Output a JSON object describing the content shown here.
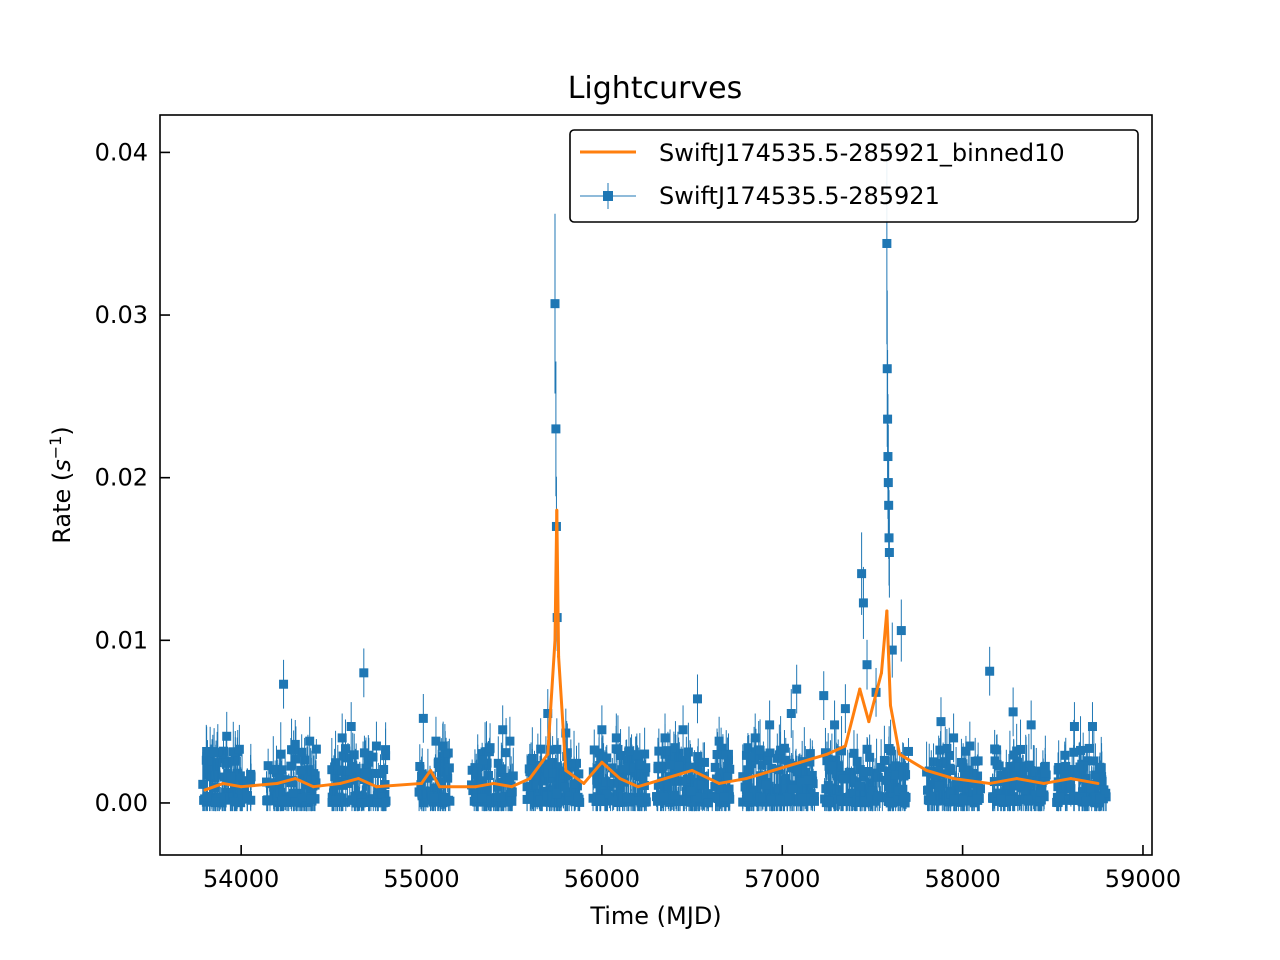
{
  "chart_data": {
    "type": "scatter",
    "title": "Lightcurves",
    "xlabel": "Time (MJD)",
    "ylabel_main": "Rate (",
    "ylabel_var": "s",
    "ylabel_exp": "−1",
    "ylabel_close": ")",
    "xlim": [
      53550,
      59050
    ],
    "ylim": [
      -0.0032,
      0.0423
    ],
    "xticks": [
      54000,
      55000,
      56000,
      57000,
      58000,
      59000
    ],
    "xtick_labels": [
      "54000",
      "55000",
      "56000",
      "57000",
      "58000",
      "59000"
    ],
    "yticks": [
      0.0,
      0.01,
      0.02,
      0.03,
      0.04
    ],
    "ytick_labels": [
      "0.00",
      "0.01",
      "0.02",
      "0.03",
      "0.04"
    ],
    "grid": false,
    "legend_position": "top-right",
    "series": [
      {
        "name": "SwiftJ174535.5-285921_binned10",
        "kind": "line",
        "color": "#ff7f0e",
        "x": [
          53800,
          53900,
          54000,
          54200,
          54300,
          54400,
          54550,
          54650,
          54750,
          55000,
          55050,
          55100,
          55300,
          55400,
          55500,
          55600,
          55700,
          55740,
          55750,
          55760,
          55800,
          55900,
          56000,
          56050,
          56100,
          56200,
          56350,
          56500,
          56650,
          56800,
          56950,
          57100,
          57250,
          57350,
          57430,
          57480,
          57550,
          57580,
          57600,
          57650,
          57800,
          57950,
          58150,
          58300,
          58450,
          58600,
          58750
        ],
        "y": [
          0.0008,
          0.0012,
          0.001,
          0.0012,
          0.0015,
          0.001,
          0.0012,
          0.0015,
          0.001,
          0.0012,
          0.002,
          0.001,
          0.001,
          0.0012,
          0.001,
          0.0015,
          0.003,
          0.01,
          0.018,
          0.009,
          0.002,
          0.0012,
          0.0025,
          0.002,
          0.0015,
          0.001,
          0.0015,
          0.002,
          0.0012,
          0.0015,
          0.002,
          0.0025,
          0.003,
          0.0035,
          0.007,
          0.005,
          0.008,
          0.0118,
          0.006,
          0.003,
          0.002,
          0.0015,
          0.0012,
          0.0015,
          0.0012,
          0.0015,
          0.0012
        ]
      },
      {
        "name": "SwiftJ174535.5-285921",
        "kind": "errorbar-square",
        "color": "#1f77b4",
        "segments": [
          [
            53780,
            54060
          ],
          [
            54140,
            54420
          ],
          [
            54500,
            54810
          ],
          [
            54980,
            55160
          ],
          [
            55270,
            55510
          ],
          [
            55580,
            55880
          ],
          [
            55950,
            56250
          ],
          [
            56300,
            56720
          ],
          [
            56780,
            57180
          ],
          [
            57230,
            57420
          ],
          [
            57430,
            57700
          ],
          [
            57800,
            58100
          ],
          [
            58160,
            58470
          ],
          [
            58520,
            58800
          ]
        ],
        "peaks": [
          {
            "x": 53850,
            "y": 0.0031
          },
          {
            "x": 53920,
            "y": 0.0041
          },
          {
            "x": 53990,
            "y": 0.0033
          },
          {
            "x": 54235,
            "y": 0.0073
          },
          {
            "x": 54300,
            "y": 0.0036
          },
          {
            "x": 54380,
            "y": 0.0038
          },
          {
            "x": 54560,
            "y": 0.004
          },
          {
            "x": 54610,
            "y": 0.0047
          },
          {
            "x": 54680,
            "y": 0.008
          },
          {
            "x": 54750,
            "y": 0.0035
          },
          {
            "x": 55010,
            "y": 0.0052
          },
          {
            "x": 55080,
            "y": 0.0038
          },
          {
            "x": 55120,
            "y": 0.0035
          },
          {
            "x": 55380,
            "y": 0.0034
          },
          {
            "x": 55450,
            "y": 0.0045
          },
          {
            "x": 55490,
            "y": 0.0038
          },
          {
            "x": 55700,
            "y": 0.0055
          },
          {
            "x": 55740,
            "y": 0.0307
          },
          {
            "x": 55745,
            "y": 0.023
          },
          {
            "x": 55748,
            "y": 0.017
          },
          {
            "x": 55752,
            "y": 0.0114
          },
          {
            "x": 55800,
            "y": 0.0043
          },
          {
            "x": 56000,
            "y": 0.0045
          },
          {
            "x": 56080,
            "y": 0.004
          },
          {
            "x": 56150,
            "y": 0.0032
          },
          {
            "x": 56350,
            "y": 0.004
          },
          {
            "x": 56450,
            "y": 0.0045
          },
          {
            "x": 56530,
            "y": 0.0064
          },
          {
            "x": 56650,
            "y": 0.0038
          },
          {
            "x": 56850,
            "y": 0.004
          },
          {
            "x": 56930,
            "y": 0.0048
          },
          {
            "x": 57050,
            "y": 0.0055
          },
          {
            "x": 57080,
            "y": 0.007
          },
          {
            "x": 57230,
            "y": 0.0066
          },
          {
            "x": 57350,
            "y": 0.0058
          },
          {
            "x": 57290,
            "y": 0.0048
          },
          {
            "x": 57440,
            "y": 0.0141
          },
          {
            "x": 57450,
            "y": 0.0123
          },
          {
            "x": 57470,
            "y": 0.0085
          },
          {
            "x": 57520,
            "y": 0.0068
          },
          {
            "x": 57580,
            "y": 0.0344
          },
          {
            "x": 57582,
            "y": 0.0267
          },
          {
            "x": 57584,
            "y": 0.0236
          },
          {
            "x": 57586,
            "y": 0.0213
          },
          {
            "x": 57588,
            "y": 0.0197
          },
          {
            "x": 57590,
            "y": 0.0183
          },
          {
            "x": 57592,
            "y": 0.0163
          },
          {
            "x": 57594,
            "y": 0.0154
          },
          {
            "x": 57610,
            "y": 0.0094
          },
          {
            "x": 57660,
            "y": 0.0106
          },
          {
            "x": 57880,
            "y": 0.005
          },
          {
            "x": 57950,
            "y": 0.004
          },
          {
            "x": 58040,
            "y": 0.0035
          },
          {
            "x": 58150,
            "y": 0.0081
          },
          {
            "x": 58280,
            "y": 0.0056
          },
          {
            "x": 58380,
            "y": 0.0048
          },
          {
            "x": 58620,
            "y": 0.0047
          },
          {
            "x": 58720,
            "y": 0.0047
          }
        ]
      }
    ]
  }
}
